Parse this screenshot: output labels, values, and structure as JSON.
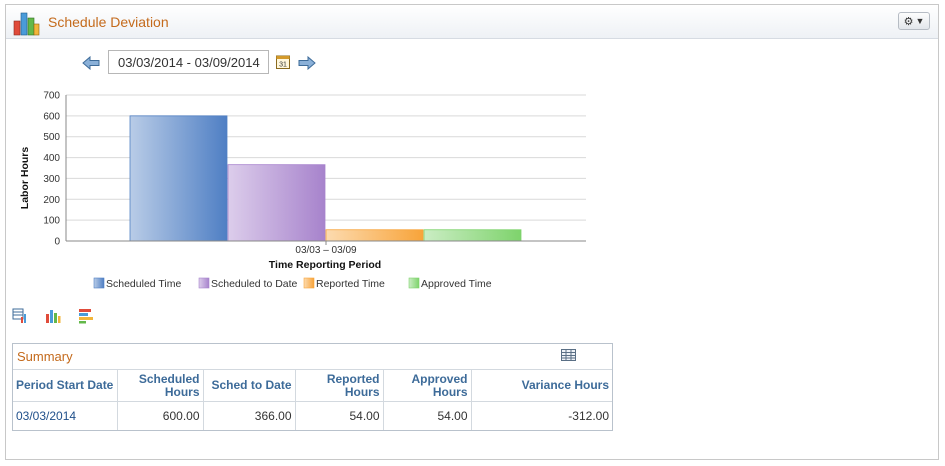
{
  "panel": {
    "title": "Schedule Deviation",
    "settings_icon": "gear-icon"
  },
  "date_nav": {
    "range": "03/03/2014 - 03/09/2014"
  },
  "chart_data": {
    "type": "bar",
    "categories": [
      "03/03 – 03/09"
    ],
    "series": [
      {
        "name": "Scheduled Time",
        "values": [
          600
        ],
        "color": "#4f7fc4"
      },
      {
        "name": "Scheduled to Date",
        "values": [
          366
        ],
        "color": "#a783cc"
      },
      {
        "name": "Reported Time",
        "values": [
          54
        ],
        "color": "#f8a43a"
      },
      {
        "name": "Approved Time",
        "values": [
          54
        ],
        "color": "#7ed36c"
      }
    ],
    "xlabel": "Time Reporting Period",
    "ylabel": "Labor Hours",
    "ylim": [
      0,
      700
    ],
    "yticks": [
      0,
      100,
      200,
      300,
      400,
      500,
      600,
      700
    ],
    "grid": true,
    "legend": "bottom"
  },
  "summary": {
    "title": "Summary",
    "columns": [
      {
        "label": "Period Start Date"
      },
      {
        "label": "Scheduled Hours"
      },
      {
        "label": "Sched to Date"
      },
      {
        "label": "Reported Hours"
      },
      {
        "label": "Approved Hours"
      },
      {
        "label": "Variance Hours"
      }
    ],
    "rows": [
      {
        "period_start": "03/03/2014",
        "scheduled": "600.00",
        "sched_to_date": "366.00",
        "reported": "54.00",
        "approved": "54.00",
        "variance": "-312.00"
      }
    ]
  }
}
